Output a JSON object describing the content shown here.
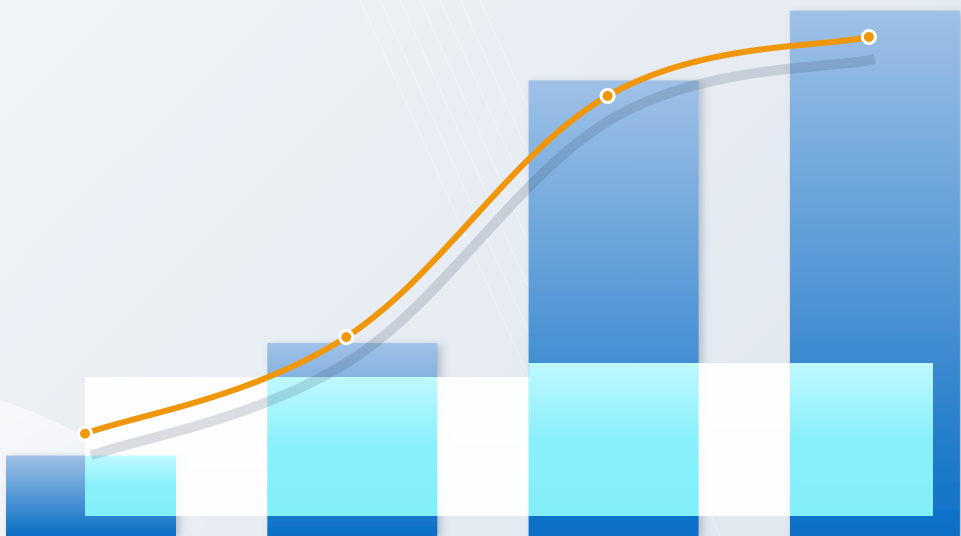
{
  "colors": {
    "bar_top": "#9fc1e6",
    "bar_bottom": "#0a6fc6",
    "line": "#f0960a",
    "marker_fill": "#f0960a",
    "marker_stroke": "#ffffff",
    "overlay_white": "#ffffff",
    "overlay_cyan": "#7deffb"
  },
  "chart_data": {
    "type": "bar",
    "categories": [
      "",
      "",
      "",
      ""
    ],
    "series": [
      {
        "kind": "bar",
        "values": [
          15,
          36,
          85,
          98
        ]
      },
      {
        "kind": "line",
        "smooth": true,
        "values": [
          15,
          33,
          78,
          89
        ]
      }
    ],
    "ylim": [
      0,
      100
    ],
    "grid": false,
    "legend": "none",
    "title": "",
    "xlabel": "",
    "ylabel": ""
  }
}
